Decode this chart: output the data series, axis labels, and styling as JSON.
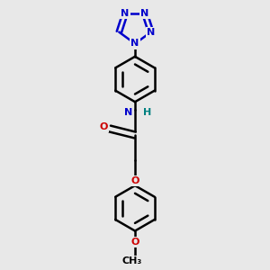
{
  "bg_color": "#e8e8e8",
  "bond_color": "#000000",
  "N_color": "#0000cc",
  "O_color": "#cc0000",
  "H_color": "#008080",
  "bond_width": 1.8,
  "figsize": [
    3.0,
    3.0
  ],
  "dpi": 100,
  "xlim": [
    -1.6,
    1.6
  ],
  "ylim": [
    -3.8,
    3.8
  ]
}
